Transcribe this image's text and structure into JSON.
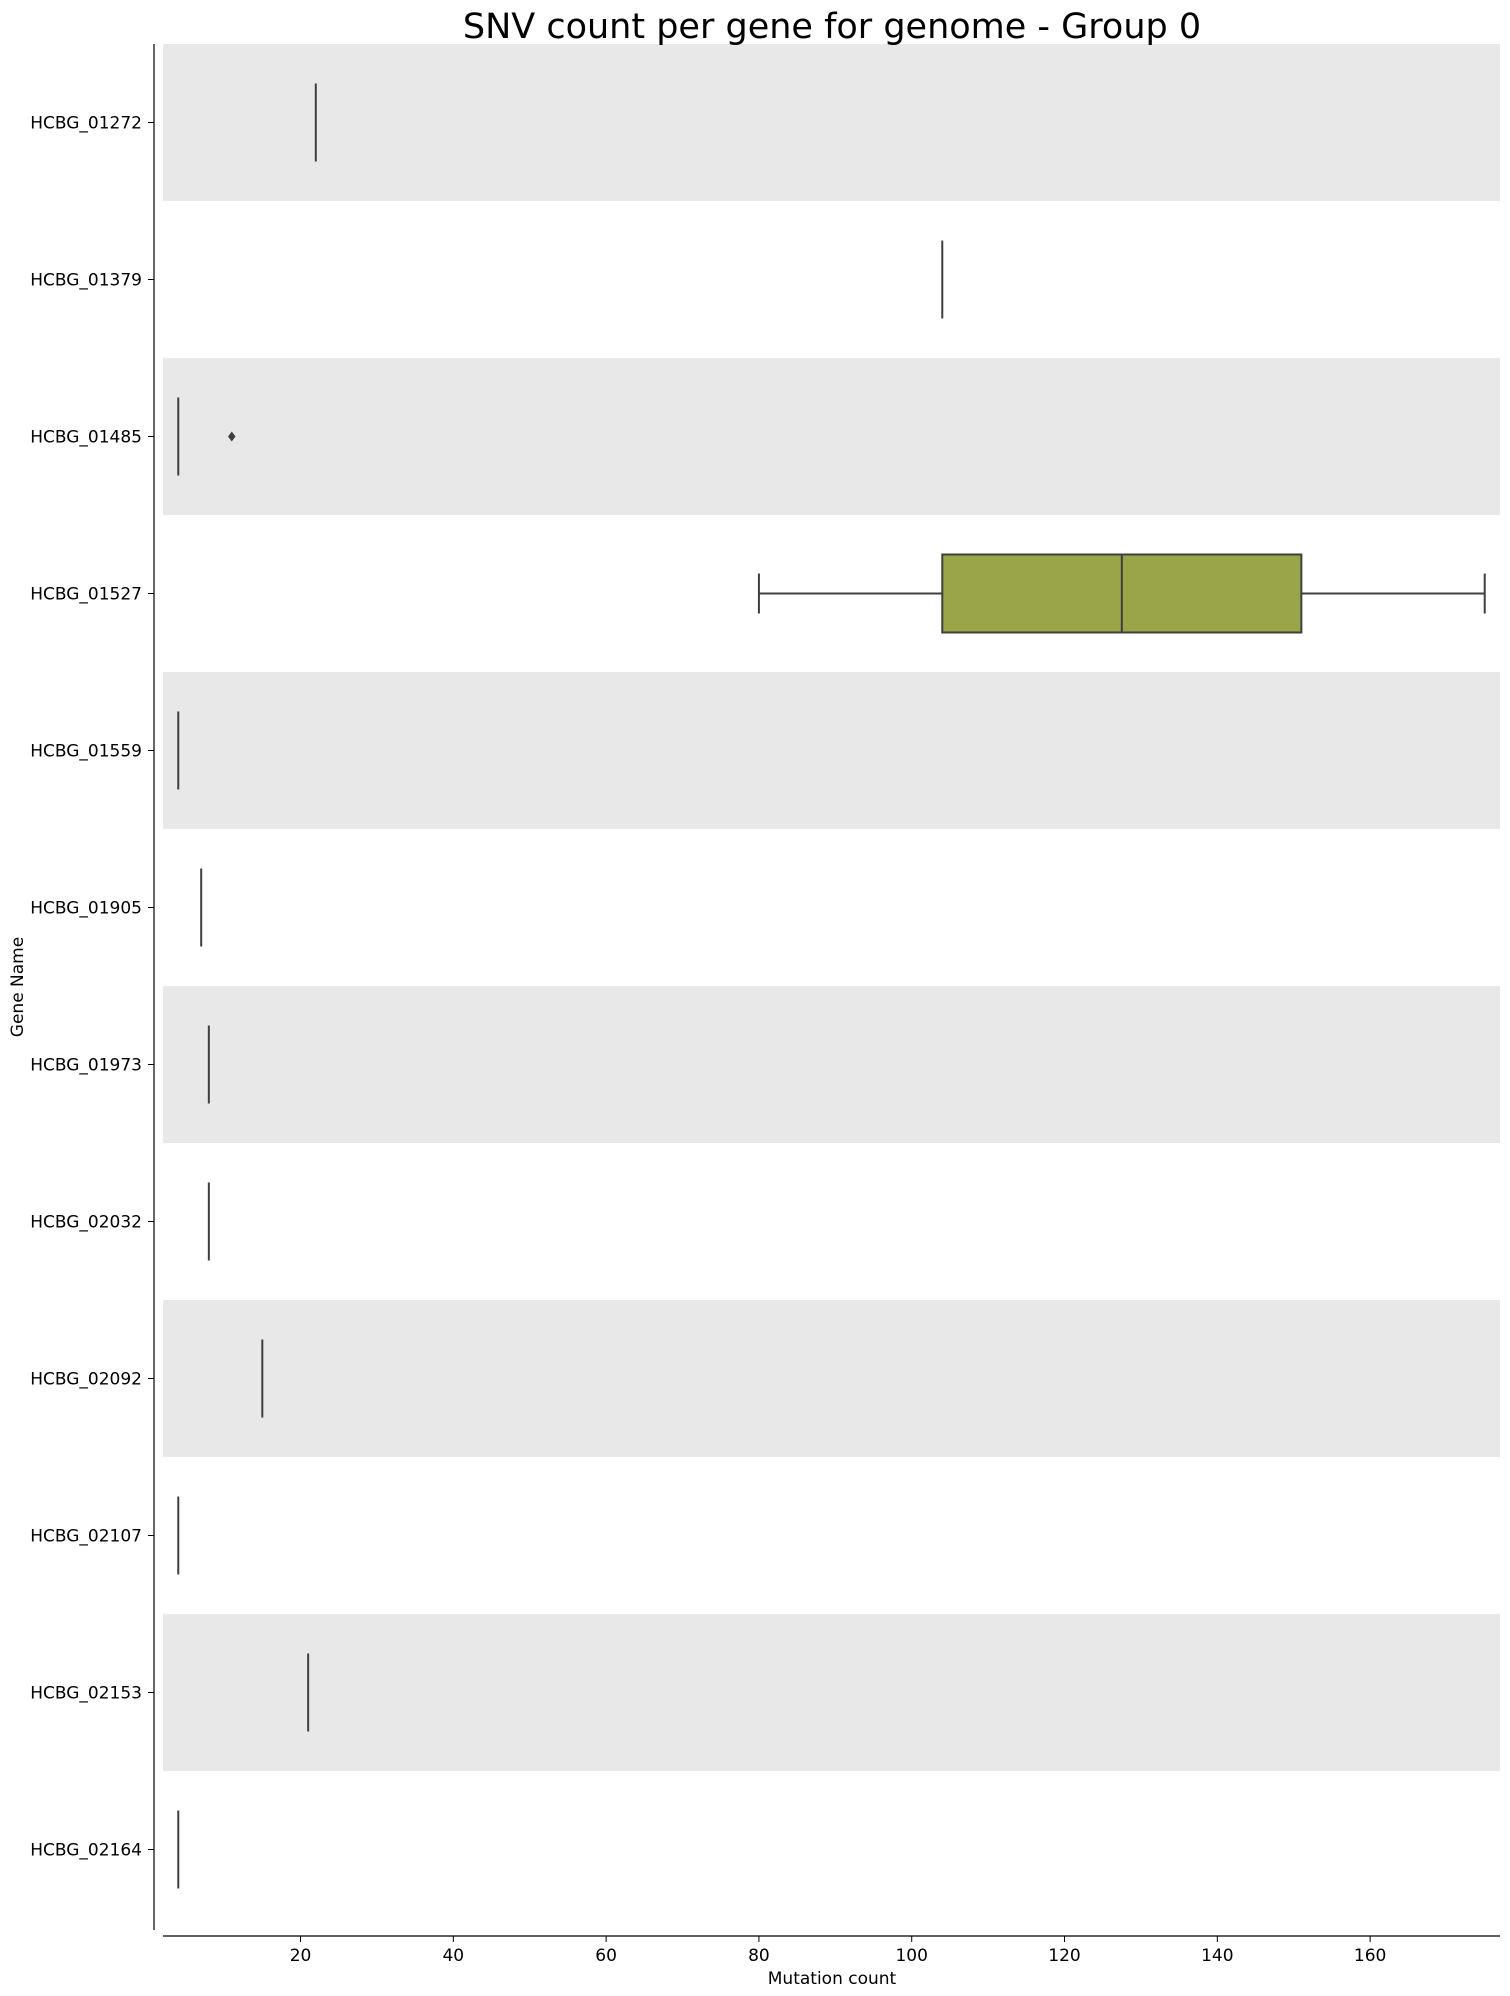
{
  "chart_data": {
    "type": "box",
    "orientation": "horizontal",
    "title": "SNV count per gene for genome - Group 0",
    "xlabel": "Mutation count",
    "ylabel": "Gene Name",
    "xlim": [
      2,
      177
    ],
    "xticks": [
      20,
      40,
      60,
      80,
      100,
      120,
      140,
      160
    ],
    "grid": false,
    "legend": "none",
    "band_colors": [
      "#e8e8e8",
      "#ffffff"
    ],
    "box_color": "#9aa54a",
    "line_color": "#3f3f3f",
    "categories": [
      "HCBG_01272",
      "HCBG_01379",
      "HCBG_01485",
      "HCBG_01527",
      "HCBG_01559",
      "HCBG_01905",
      "HCBG_01973",
      "HCBG_02032",
      "HCBG_02092",
      "HCBG_02107",
      "HCBG_02153",
      "HCBG_02164"
    ],
    "boxes": [
      {
        "gene": "HCBG_01272",
        "min": 22,
        "q1": 22,
        "median": 22,
        "q3": 22,
        "max": 22,
        "outliers": []
      },
      {
        "gene": "HCBG_01379",
        "min": 104,
        "q1": 104,
        "median": 104,
        "q3": 104,
        "max": 104,
        "outliers": []
      },
      {
        "gene": "HCBG_01485",
        "min": 4,
        "q1": 4,
        "median": 4,
        "q3": 4,
        "max": 4,
        "outliers": [
          11
        ]
      },
      {
        "gene": "HCBG_01527",
        "min": 80,
        "q1": 104,
        "median": 127.5,
        "q3": 151,
        "max": 175,
        "outliers": []
      },
      {
        "gene": "HCBG_01559",
        "min": 4,
        "q1": 4,
        "median": 4,
        "q3": 4,
        "max": 4,
        "outliers": []
      },
      {
        "gene": "HCBG_01905",
        "min": 7,
        "q1": 7,
        "median": 7,
        "q3": 7,
        "max": 7,
        "outliers": []
      },
      {
        "gene": "HCBG_01973",
        "min": 8,
        "q1": 8,
        "median": 8,
        "q3": 8,
        "max": 8,
        "outliers": []
      },
      {
        "gene": "HCBG_02032",
        "min": 8,
        "q1": 8,
        "median": 8,
        "q3": 8,
        "max": 8,
        "outliers": []
      },
      {
        "gene": "HCBG_02092",
        "min": 15,
        "q1": 15,
        "median": 15,
        "q3": 15,
        "max": 15,
        "outliers": []
      },
      {
        "gene": "HCBG_02107",
        "min": 4,
        "q1": 4,
        "median": 4,
        "q3": 4,
        "max": 4,
        "outliers": []
      },
      {
        "gene": "HCBG_02153",
        "min": 21,
        "q1": 21,
        "median": 21,
        "q3": 21,
        "max": 21,
        "outliers": []
      },
      {
        "gene": "HCBG_02164",
        "min": 4,
        "q1": 4,
        "median": 4,
        "q3": 4,
        "max": 4,
        "outliers": []
      }
    ]
  }
}
